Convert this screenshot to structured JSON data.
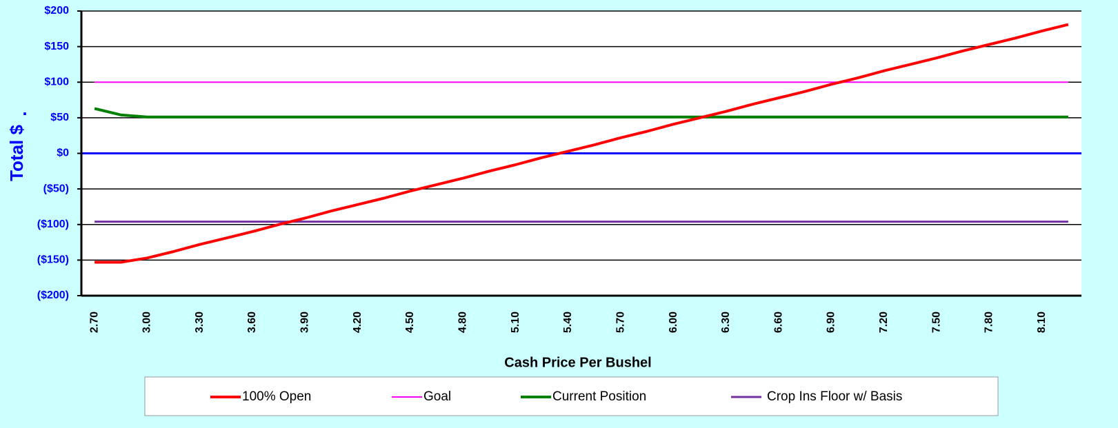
{
  "chart_data": {
    "type": "line",
    "x_label": "Cash Price Per Bushel",
    "y_label": "Total $",
    "annotation": ".",
    "categories": [
      "2.70",
      null,
      "3.00",
      null,
      "3.30",
      null,
      "3.60",
      null,
      "3.90",
      null,
      "4.20",
      null,
      "4.50",
      null,
      "4.80",
      null,
      "5.10",
      null,
      "5.40",
      null,
      "5.70",
      null,
      "6.00",
      null,
      "6.30",
      null,
      "6.60",
      null,
      "6.90",
      null,
      "7.20",
      null,
      "7.50",
      null,
      "7.80",
      null,
      "8.10",
      null
    ],
    "series": [
      {
        "name": "100% Open",
        "color": "#ff0000",
        "width": 4,
        "values": [
          -153,
          -153,
          -147,
          -138,
          -128,
          -119,
          -110,
          -100,
          -91,
          -81,
          -72,
          -63,
          -53,
          -44,
          -35,
          -25,
          -16,
          -6,
          3,
          12,
          22,
          31,
          41,
          50,
          59,
          69,
          78,
          87,
          97,
          106,
          116,
          125,
          134,
          144,
          153,
          162,
          172,
          181
        ]
      },
      {
        "name": "Goal",
        "color": "#ff00ff",
        "width": 2,
        "values": [
          100,
          100,
          100,
          100,
          100,
          100,
          100,
          100,
          100,
          100,
          100,
          100,
          100,
          100,
          100,
          100,
          100,
          100,
          100,
          100,
          100,
          100,
          100,
          100,
          100,
          100,
          100,
          100,
          100,
          100,
          100,
          100,
          100,
          100,
          100,
          100,
          100,
          100
        ]
      },
      {
        "name": "Current Position",
        "color": "#008000",
        "width": 4,
        "values": [
          63,
          54,
          51,
          51,
          51,
          51,
          51,
          51,
          51,
          51,
          51,
          51,
          51,
          51,
          51,
          51,
          51,
          51,
          51,
          51,
          51,
          51,
          51,
          51,
          51,
          51,
          51,
          51,
          51,
          51,
          51,
          51,
          51,
          51,
          51,
          51,
          51,
          51
        ]
      },
      {
        "name": "Crop Ins Floor w/ Basis",
        "color": "#7030a0",
        "width": 3,
        "values": [
          -96,
          -96,
          -96,
          -96,
          -96,
          -96,
          -96,
          -96,
          -96,
          -96,
          -96,
          -96,
          -96,
          -96,
          -96,
          -96,
          -96,
          -96,
          -96,
          -96,
          -96,
          -96,
          -96,
          -96,
          -96,
          -96,
          -96,
          -96,
          -96,
          -96,
          -96,
          -96,
          -96,
          -96,
          -96,
          -96,
          -96,
          -96
        ]
      }
    ],
    "ylim": [
      -200,
      200
    ],
    "yticks": [
      {
        "value": -200,
        "label": "($200)"
      },
      {
        "value": -150,
        "label": "($150)"
      },
      {
        "value": -100,
        "label": "($100)"
      },
      {
        "value": -50,
        "label": "($50)"
      },
      {
        "value": 0,
        "label": "$0"
      },
      {
        "value": 50,
        "label": "$50"
      },
      {
        "value": 100,
        "label": "$100"
      },
      {
        "value": 150,
        "label": "$150"
      },
      {
        "value": 200,
        "label": "$200"
      }
    ],
    "grid": true,
    "zero_line_color": "#0000ff",
    "legend": "bottom"
  }
}
